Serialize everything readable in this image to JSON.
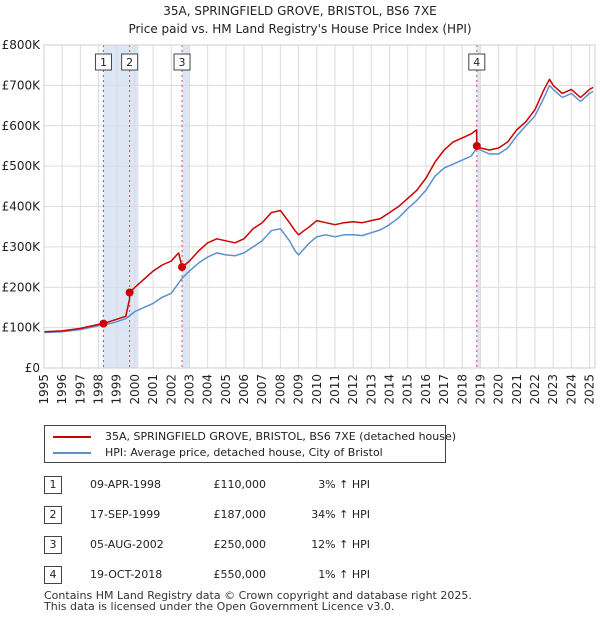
{
  "chart_data": {
    "type": "line",
    "title": "35A, SPRINGFIELD GROVE, BRISTOL, BS6 7XE",
    "subtitle": "Price paid vs. HM Land Registry's House Price Index (HPI)",
    "xlabel": "",
    "ylabel": "",
    "xlim": [
      1995.0,
      2025.3
    ],
    "ylim": [
      0,
      800000
    ],
    "y_ticks": [
      {
        "value": 0,
        "label": "£0"
      },
      {
        "value": 100000,
        "label": "£100K"
      },
      {
        "value": 200000,
        "label": "£200K"
      },
      {
        "value": 300000,
        "label": "£300K"
      },
      {
        "value": 400000,
        "label": "£400K"
      },
      {
        "value": 500000,
        "label": "£500K"
      },
      {
        "value": 600000,
        "label": "£600K"
      },
      {
        "value": 700000,
        "label": "£700K"
      },
      {
        "value": 800000,
        "label": "£800K"
      }
    ],
    "x_ticks": [
      "1995",
      "1996",
      "1997",
      "1998",
      "1999",
      "2000",
      "2001",
      "2002",
      "2003",
      "2004",
      "2005",
      "2006",
      "2007",
      "2008",
      "2009",
      "2010",
      "2011",
      "2012",
      "2013",
      "2014",
      "2015",
      "2016",
      "2017",
      "2018",
      "2019",
      "2020",
      "2021",
      "2022",
      "2023",
      "2024",
      "2025"
    ],
    "grid": true,
    "shaded_periods": [
      [
        1998.27,
        2000.2
      ],
      [
        2002.6,
        2003.0
      ],
      [
        2018.8,
        2019.0
      ]
    ],
    "series": [
      {
        "name": "35A, SPRINGFIELD GROVE, BRISTOL, BS6 7XE (detached house)",
        "color": "#cc0000",
        "x": [
          1995.0,
          1996.0,
          1997.0,
          1998.0,
          1998.27,
          1998.8,
          1999.5,
          1999.7,
          1999.71,
          2000.0,
          2000.5,
          2001.0,
          2001.5,
          2002.0,
          2002.4,
          2002.59,
          2002.6,
          2003.0,
          2003.5,
          2004.0,
          2004.5,
          2005.0,
          2005.5,
          2006.0,
          2006.5,
          2007.0,
          2007.5,
          2008.0,
          2008.5,
          2008.8,
          2009.0,
          2009.3,
          2009.6,
          2010.0,
          2010.5,
          2011.0,
          2011.5,
          2012.0,
          2012.5,
          2013.0,
          2013.5,
          2014.0,
          2014.5,
          2015.0,
          2015.5,
          2016.0,
          2016.5,
          2017.0,
          2017.5,
          2018.0,
          2018.5,
          2018.79,
          2018.8,
          2019.0,
          2019.5,
          2020.0,
          2020.5,
          2021.0,
          2021.5,
          2022.0,
          2022.5,
          2022.8,
          2023.0,
          2023.5,
          2024.0,
          2024.5,
          2025.0,
          2025.2
        ],
        "values": [
          90000,
          92000,
          98000,
          108000,
          110000,
          118000,
          128000,
          170000,
          187000,
          200000,
          220000,
          240000,
          255000,
          265000,
          285000,
          250000,
          250000,
          265000,
          290000,
          310000,
          320000,
          315000,
          310000,
          320000,
          345000,
          360000,
          385000,
          390000,
          360000,
          340000,
          330000,
          340000,
          350000,
          365000,
          360000,
          355000,
          360000,
          362000,
          360000,
          365000,
          370000,
          385000,
          400000,
          420000,
          440000,
          470000,
          510000,
          540000,
          560000,
          570000,
          580000,
          590000,
          550000,
          545000,
          540000,
          545000,
          560000,
          590000,
          610000,
          640000,
          690000,
          715000,
          700000,
          680000,
          690000,
          670000,
          690000,
          695000
        ]
      },
      {
        "name": "HPI: Average price, detached house, City of Bristol",
        "color": "#5b8fd0",
        "x": [
          1995.0,
          1996.0,
          1997.0,
          1998.0,
          1998.27,
          1998.8,
          1999.5,
          2000.0,
          2000.5,
          2001.0,
          2001.5,
          2002.0,
          2002.6,
          2003.0,
          2003.5,
          2004.0,
          2004.5,
          2005.0,
          2005.5,
          2006.0,
          2006.5,
          2007.0,
          2007.5,
          2008.0,
          2008.5,
          2008.8,
          2009.0,
          2009.3,
          2009.6,
          2010.0,
          2010.5,
          2011.0,
          2011.5,
          2012.0,
          2012.5,
          2013.0,
          2013.5,
          2014.0,
          2014.5,
          2015.0,
          2015.5,
          2016.0,
          2016.5,
          2017.0,
          2017.5,
          2018.0,
          2018.5,
          2018.8,
          2019.0,
          2019.5,
          2020.0,
          2020.5,
          2021.0,
          2021.5,
          2022.0,
          2022.5,
          2022.8,
          2023.0,
          2023.5,
          2024.0,
          2024.5,
          2025.0,
          2025.2
        ],
        "values": [
          88000,
          90000,
          95000,
          105000,
          107000,
          112000,
          122000,
          140000,
          150000,
          160000,
          175000,
          185000,
          223000,
          240000,
          260000,
          275000,
          285000,
          280000,
          278000,
          285000,
          300000,
          315000,
          340000,
          345000,
          315000,
          290000,
          280000,
          295000,
          310000,
          325000,
          330000,
          325000,
          330000,
          330000,
          328000,
          335000,
          342000,
          355000,
          372000,
          395000,
          415000,
          440000,
          475000,
          495000,
          505000,
          515000,
          525000,
          545000,
          540000,
          530000,
          530000,
          545000,
          575000,
          600000,
          625000,
          670000,
          700000,
          690000,
          670000,
          680000,
          660000,
          680000,
          685000
        ]
      }
    ],
    "sales": [
      {
        "num": "1",
        "date": "09-APR-1998",
        "price": "£110,000",
        "hpi": "3% ↑ HPI",
        "x": 1998.27,
        "value": 110000
      },
      {
        "num": "2",
        "date": "17-SEP-1999",
        "price": "£187,000",
        "hpi": "34% ↑ HPI",
        "x": 1999.71,
        "value": 187000
      },
      {
        "num": "3",
        "date": "05-AUG-2002",
        "price": "£250,000",
        "hpi": "12% ↑ HPI",
        "x": 2002.59,
        "value": 250000
      },
      {
        "num": "4",
        "date": "19-OCT-2018",
        "price": "£550,000",
        "hpi": "1% ↑ HPI",
        "x": 2018.8,
        "value": 550000
      }
    ]
  },
  "colors": {
    "property": "#cc0000",
    "hpi": "#5b8fd0",
    "shade": "#dde6f5",
    "grid": "#dcdcdc"
  },
  "legend": {
    "property_label": "35A, SPRINGFIELD GROVE, BRISTOL, BS6 7XE (detached house)",
    "hpi_label": "HPI: Average price, detached house, City of Bristol"
  },
  "footer": {
    "line1": "Contains HM Land Registry data © Crown copyright and database right 2025.",
    "line2": "This data is licensed under the Open Government Licence v3.0."
  }
}
